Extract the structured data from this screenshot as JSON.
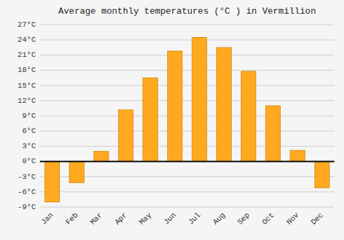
{
  "chart_data": {
    "type": "bar",
    "title": "Average monthly temperatures (°C ) in Vermillion",
    "categories": [
      "Jan",
      "Feb",
      "Mar",
      "Apr",
      "May",
      "Jun",
      "Jul",
      "Aug",
      "Sep",
      "Oct",
      "Nov",
      "Dec"
    ],
    "values": [
      -8.0,
      -4.2,
      2.0,
      10.2,
      16.5,
      21.8,
      24.5,
      22.5,
      17.8,
      11.0,
      2.2,
      -5.2
    ],
    "color": "#FFA820",
    "ylim": [
      -9,
      27
    ],
    "yticks": [
      {
        "value": -9,
        "label": "-9°C"
      },
      {
        "value": -6,
        "label": "-6°C"
      },
      {
        "value": -3,
        "label": "-3°C"
      },
      {
        "value": 0,
        "label": "0°C"
      },
      {
        "value": 3,
        "label": "3°C"
      },
      {
        "value": 6,
        "label": "6°C"
      },
      {
        "value": 9,
        "label": "9°C"
      },
      {
        "value": 12,
        "label": "12°C"
      },
      {
        "value": 15,
        "label": "15°C"
      },
      {
        "value": 18,
        "label": "18°C"
      },
      {
        "value": 21,
        "label": "21°C"
      },
      {
        "value": 24,
        "label": "24°C"
      },
      {
        "value": 27,
        "label": "27°C"
      }
    ],
    "grid": true
  }
}
